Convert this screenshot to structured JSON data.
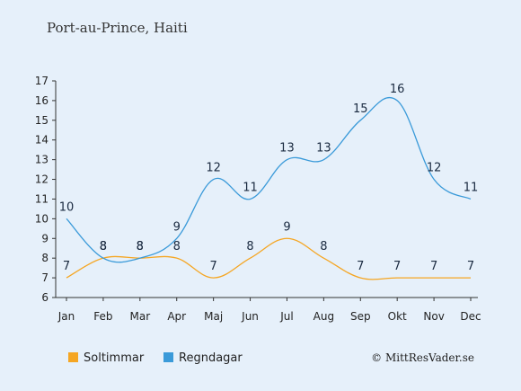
{
  "chart_data": {
    "type": "line",
    "title": "Port-au-Prince, Haiti",
    "categories": [
      "Jan",
      "Feb",
      "Mar",
      "Apr",
      "Maj",
      "Jun",
      "Jul",
      "Aug",
      "Sep",
      "Okt",
      "Nov",
      "Dec"
    ],
    "series": [
      {
        "name": "Soltimmar",
        "color": "#f5a623",
        "values": [
          7,
          8,
          8,
          8,
          7,
          8,
          9,
          8,
          7,
          7,
          7,
          7
        ]
      },
      {
        "name": "Regndagar",
        "color": "#3a9ad9",
        "values": [
          10,
          8,
          8,
          9,
          12,
          11,
          13,
          13,
          15,
          16,
          12,
          11
        ]
      }
    ],
    "y_ticks": [
      "6",
      "7",
      "8",
      "9",
      "10",
      "11",
      "12",
      "13",
      "14",
      "15",
      "16",
      "17"
    ],
    "ylim": [
      6,
      17
    ],
    "grid": false,
    "legend_position": "bottom-left",
    "credit": "© MittResVader.se"
  }
}
